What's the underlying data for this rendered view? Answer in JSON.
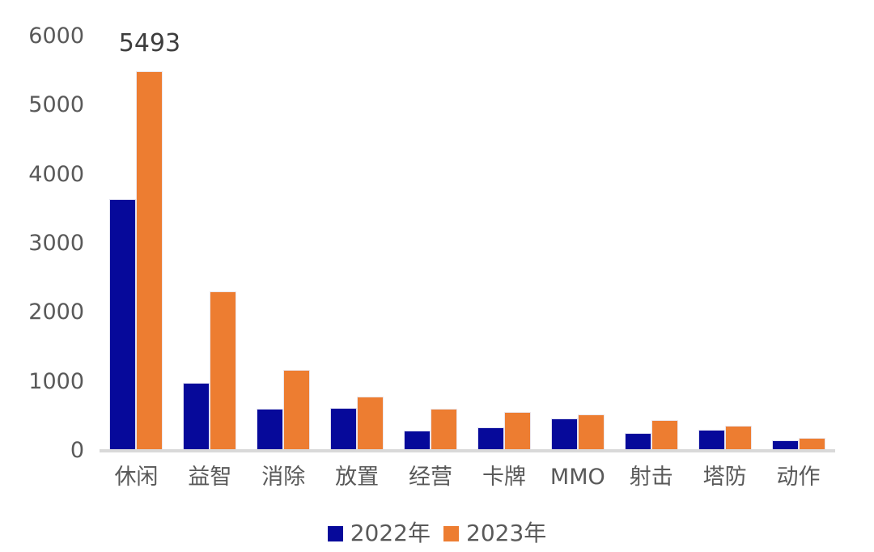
{
  "chart_data": {
    "type": "bar",
    "title": "",
    "xlabel": "",
    "ylabel": "",
    "categories": [
      "休闲",
      "益智",
      "消除",
      "放置",
      "经营",
      "卡牌",
      "MMO",
      "射击",
      "塔防",
      "动作"
    ],
    "series": [
      {
        "name": "2022年",
        "color": "#06099a",
        "values": [
          3650,
          980,
          610,
          620,
          290,
          340,
          470,
          260,
          300,
          155
        ]
      },
      {
        "name": "2023年",
        "color": "#ed7d31",
        "values": [
          5493,
          2310,
          1170,
          790,
          610,
          560,
          530,
          450,
          360,
          185
        ]
      }
    ],
    "ylim": [
      0,
      6000
    ],
    "yticks": [
      0,
      1000,
      2000,
      3000,
      4000,
      5000,
      6000
    ],
    "grid": false,
    "legend_position": "bottom",
    "annotations": [
      {
        "series_index": 1,
        "category_index": 0,
        "text": "5493"
      }
    ]
  },
  "colors": {
    "axis_text": "#595959",
    "baseline": "#d9d9d9",
    "data_label": "#3d3d3d",
    "background": "#ffffff"
  }
}
